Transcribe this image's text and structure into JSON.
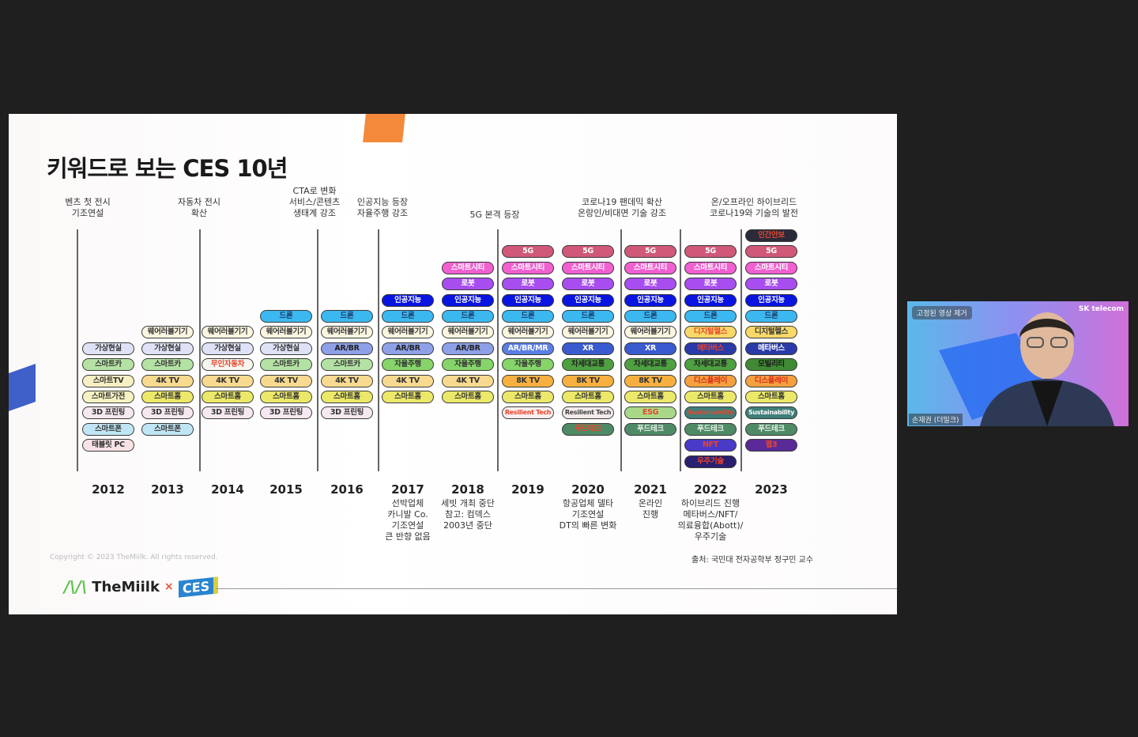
{
  "slide": {
    "title": "키워드로 보는 CES 10년",
    "headers": [
      {
        "text": "벤츠 첫 전시\n기조연설"
      },
      {
        "text": "자동차 전시\n확산"
      },
      {
        "text": "CTA로 변화\n서비스/콘텐츠\n생태계 강조"
      },
      {
        "text": "인공지능 등장\n자율주행 강조"
      },
      {
        "text": "5G 본격 등장"
      },
      {
        "text": "코로나19 팬데믹 확산\n온랑인/비대면 기술 강조"
      },
      {
        "text": "온/오프라인 하이브리드\n코로나19와 기술의 발전"
      }
    ],
    "styles": {
      "vr": {
        "bg": "#dfe2f6",
        "fg": "#333333"
      },
      "smartcar": {
        "bg": "#b4e2a4",
        "fg": "#333333"
      },
      "smarttv": {
        "bg": "#f7f0c4",
        "fg": "#333333"
      },
      "appliance": {
        "bg": "#f5f3c2",
        "fg": "#333333"
      },
      "print3d": {
        "bg": "#f5e8f0",
        "fg": "#333333"
      },
      "phone": {
        "bg": "#c0e6f6",
        "fg": "#333333"
      },
      "tablet": {
        "bg": "#f7e2e6",
        "fg": "#333333"
      },
      "wearable": {
        "bg": "#faf5e0",
        "fg": "#333333"
      },
      "tv4k": {
        "bg": "#f7da90",
        "fg": "#333333"
      },
      "home": {
        "bg": "#ebe86a",
        "fg": "#333333"
      },
      "driverless": {
        "bg": "#f6f5ee",
        "fg": "#e8452c"
      },
      "drone": {
        "bg": "#3cb8f0",
        "fg": "#1a3a6a"
      },
      "arbr": {
        "bg": "#8ea0e8",
        "fg": "#222222"
      },
      "ai": {
        "bg": "#0a14e0",
        "fg": "#ffffff"
      },
      "autonomous": {
        "bg": "#86d46a",
        "fg": "#333333"
      },
      "city": {
        "bg": "#f060d0",
        "fg": "#ffffff"
      },
      "robot": {
        "bg": "#a84ef0",
        "fg": "#ffffff"
      },
      "g5": {
        "bg": "#d05878",
        "fg": "#ffffff"
      },
      "arbrmr": {
        "bg": "#5a7ee6",
        "fg": "#ffffff"
      },
      "tv8k": {
        "bg": "#f7b040",
        "fg": "#333333"
      },
      "resilient_red": {
        "bg": "#f8eeee",
        "fg": "#e8452c"
      },
      "resilient": {
        "bg": "#f3eaea",
        "fg": "#444444"
      },
      "xr": {
        "bg": "#3a5ad0",
        "fg": "#ffffff"
      },
      "nextgen": {
        "bg": "#4ea040",
        "fg": "#222222"
      },
      "food": {
        "bg": "#4e8a66",
        "fg": "#e8f0e8"
      },
      "food_red": {
        "bg": "#4e8a66",
        "fg": "#e8452c"
      },
      "esg": {
        "bg": "#a8d888",
        "fg": "#e8452c"
      },
      "health_red": {
        "bg": "#f7d868",
        "fg": "#e8452c"
      },
      "health": {
        "bg": "#f7d868",
        "fg": "#333333"
      },
      "meta_red": {
        "bg": "#2a3aa8",
        "fg": "#e8452c"
      },
      "meta": {
        "bg": "#2a3aa8",
        "fg": "#ffffff"
      },
      "display": {
        "bg": "#f4a040",
        "fg": "#d8301c"
      },
      "sustain_red": {
        "bg": "#3e7f78",
        "fg": "#e8452c"
      },
      "sustain": {
        "bg": "#3e7f78",
        "fg": "#ffffff"
      },
      "nft": {
        "bg": "#4a3ac8",
        "fg": "#e8452c"
      },
      "space": {
        "bg": "#2a2070",
        "fg": "#e8452c"
      },
      "mobility": {
        "bg": "#3f8a32",
        "fg": "#1a1a1a"
      },
      "web3": {
        "bg": "#5a2a98",
        "fg": "#e8452c"
      },
      "security": {
        "bg": "#2a2a3a",
        "fg": "#e8452c"
      }
    },
    "columns": [
      {
        "year": "2012",
        "note": "",
        "items": [
          {
            "t": "가상현실",
            "s": "vr"
          },
          {
            "t": "스마트카",
            "s": "smartcar"
          },
          {
            "t": "스마트TV",
            "s": "smarttv"
          },
          {
            "t": "스마트가전",
            "s": "appliance"
          },
          {
            "t": "3D 프린팅",
            "s": "print3d"
          },
          {
            "t": "스마트폰",
            "s": "phone"
          },
          {
            "t": "태블릿 PC",
            "s": "tablet"
          }
        ]
      },
      {
        "year": "2013",
        "note": "",
        "items": [
          {
            "t": "웨어러블기기",
            "s": "wearable"
          },
          {
            "t": "가상현실",
            "s": "vr"
          },
          {
            "t": "스마트카",
            "s": "smartcar"
          },
          {
            "t": "4K TV",
            "s": "tv4k"
          },
          {
            "t": "스마트홈",
            "s": "home"
          },
          {
            "t": "3D 프린팅",
            "s": "print3d"
          },
          {
            "t": "스마트폰",
            "s": "phone"
          }
        ]
      },
      {
        "year": "2014",
        "note": "",
        "items": [
          {
            "t": "웨어러블기기",
            "s": "wearable"
          },
          {
            "t": "가상현실",
            "s": "vr"
          },
          {
            "t": "무인자동차",
            "s": "driverless"
          },
          {
            "t": "4K TV",
            "s": "tv4k"
          },
          {
            "t": "스마트홈",
            "s": "home"
          },
          {
            "t": "3D 프린팅",
            "s": "print3d"
          }
        ]
      },
      {
        "year": "2015",
        "note": "",
        "items": [
          {
            "t": "드론",
            "s": "drone"
          },
          {
            "t": "웨어러블기기",
            "s": "wearable"
          },
          {
            "t": "가상현실",
            "s": "vr"
          },
          {
            "t": "스마트카",
            "s": "smartcar"
          },
          {
            "t": "4K TV",
            "s": "tv4k"
          },
          {
            "t": "스마트홈",
            "s": "home"
          },
          {
            "t": "3D 프린팅",
            "s": "print3d"
          }
        ]
      },
      {
        "year": "2016",
        "note": "",
        "items": [
          {
            "t": "드론",
            "s": "drone"
          },
          {
            "t": "웨어러블기기",
            "s": "wearable"
          },
          {
            "t": "AR/BR",
            "s": "arbr"
          },
          {
            "t": "스마트카",
            "s": "smartcar"
          },
          {
            "t": "4K TV",
            "s": "tv4k"
          },
          {
            "t": "스마트홈",
            "s": "home"
          },
          {
            "t": "3D 프린팅",
            "s": "print3d"
          }
        ]
      },
      {
        "year": "2017",
        "note": "선박업체\n카니발 Co.\n기조연설\n큰 반향 없음",
        "items": [
          {
            "t": "인공지능",
            "s": "ai"
          },
          {
            "t": "드론",
            "s": "drone"
          },
          {
            "t": "웨어러블기기",
            "s": "wearable"
          },
          {
            "t": "AR/BR",
            "s": "arbr"
          },
          {
            "t": "자율주행",
            "s": "autonomous"
          },
          {
            "t": "4K TV",
            "s": "tv4k"
          },
          {
            "t": "스마트홈",
            "s": "home"
          }
        ]
      },
      {
        "year": "2018",
        "note": "세빗 개최 중단\n참고: 컴덱스\n2003년 중단",
        "items": [
          {
            "t": "스마트시티",
            "s": "city"
          },
          {
            "t": "로봇",
            "s": "robot"
          },
          {
            "t": "인공지능",
            "s": "ai"
          },
          {
            "t": "드론",
            "s": "drone"
          },
          {
            "t": "웨어러블기기",
            "s": "wearable"
          },
          {
            "t": "AR/BR",
            "s": "arbr"
          },
          {
            "t": "자율주행",
            "s": "autonomous"
          },
          {
            "t": "4K TV",
            "s": "tv4k"
          },
          {
            "t": "스마트홈",
            "s": "home"
          }
        ]
      },
      {
        "year": "2019",
        "note": "",
        "items": [
          {
            "t": "5G",
            "s": "g5"
          },
          {
            "t": "스마트시티",
            "s": "city"
          },
          {
            "t": "로봇",
            "s": "robot"
          },
          {
            "t": "인공지능",
            "s": "ai"
          },
          {
            "t": "드론",
            "s": "drone"
          },
          {
            "t": "웨어러블기기",
            "s": "wearable"
          },
          {
            "t": "AR/BR/MR",
            "s": "arbrmr"
          },
          {
            "t": "자율주행",
            "s": "autonomous"
          },
          {
            "t": "8K TV",
            "s": "tv8k"
          },
          {
            "t": "스마트홈",
            "s": "home"
          },
          {
            "t": "Resilient Tech",
            "s": "resilient_red"
          }
        ]
      },
      {
        "year": "2020",
        "note": "항공업체 델타\n기조연설\nDT의 빠른 변화",
        "items": [
          {
            "t": "5G",
            "s": "g5"
          },
          {
            "t": "스마트시티",
            "s": "city"
          },
          {
            "t": "로봇",
            "s": "robot"
          },
          {
            "t": "인공지능",
            "s": "ai"
          },
          {
            "t": "드론",
            "s": "drone"
          },
          {
            "t": "웨어러블기기",
            "s": "wearable"
          },
          {
            "t": "XR",
            "s": "xr"
          },
          {
            "t": "차세대교통",
            "s": "nextgen"
          },
          {
            "t": "8K TV",
            "s": "tv8k"
          },
          {
            "t": "스마트홈",
            "s": "home"
          },
          {
            "t": "Resilient Tech",
            "s": "resilient"
          },
          {
            "t": "푸드테크",
            "s": "food_red"
          }
        ]
      },
      {
        "year": "2021",
        "note": "온라인\n진행",
        "items": [
          {
            "t": "5G",
            "s": "g5"
          },
          {
            "t": "스마트시티",
            "s": "city"
          },
          {
            "t": "로봇",
            "s": "robot"
          },
          {
            "t": "인공지능",
            "s": "ai"
          },
          {
            "t": "드론",
            "s": "drone"
          },
          {
            "t": "웨어러블기기",
            "s": "wearable"
          },
          {
            "t": "XR",
            "s": "xr"
          },
          {
            "t": "차세대교통",
            "s": "nextgen"
          },
          {
            "t": "8K TV",
            "s": "tv8k"
          },
          {
            "t": "스마트홈",
            "s": "home"
          },
          {
            "t": "ESG",
            "s": "esg"
          },
          {
            "t": "푸드테크",
            "s": "food"
          }
        ]
      },
      {
        "year": "2022",
        "note": "하이브리드 진행\n메타버스/NFT/\n의료융합(Abott)/\n우주기술",
        "items": [
          {
            "t": "5G",
            "s": "g5"
          },
          {
            "t": "스마트시티",
            "s": "city"
          },
          {
            "t": "로봇",
            "s": "robot"
          },
          {
            "t": "인공지능",
            "s": "ai"
          },
          {
            "t": "드론",
            "s": "drone"
          },
          {
            "t": "디지털헬스",
            "s": "health_red"
          },
          {
            "t": "메타버스",
            "s": "meta_red"
          },
          {
            "t": "차세대교통",
            "s": "nextgen"
          },
          {
            "t": "디스플레이",
            "s": "display"
          },
          {
            "t": "스마트홈",
            "s": "home"
          },
          {
            "t": "Sustainability",
            "s": "sustain_red"
          },
          {
            "t": "푸드테크",
            "s": "food"
          },
          {
            "t": "NFT",
            "s": "nft"
          },
          {
            "t": "우주기술",
            "s": "space"
          }
        ]
      },
      {
        "year": "2023",
        "note": "",
        "items": [
          {
            "t": "인간안보",
            "s": "security"
          },
          {
            "t": "5G",
            "s": "g5"
          },
          {
            "t": "스마트시티",
            "s": "city"
          },
          {
            "t": "로봇",
            "s": "robot"
          },
          {
            "t": "인공지능",
            "s": "ai"
          },
          {
            "t": "드론",
            "s": "drone"
          },
          {
            "t": "디지털헬스",
            "s": "health"
          },
          {
            "t": "메타버스",
            "s": "meta"
          },
          {
            "t": "모빌리티",
            "s": "mobility"
          },
          {
            "t": "디스플레이",
            "s": "display"
          },
          {
            "t": "스마트홈",
            "s": "home"
          },
          {
            "t": "Sustainability",
            "s": "sustain"
          },
          {
            "t": "푸드테크",
            "s": "food"
          },
          {
            "t": "웹3",
            "s": "web3"
          }
        ]
      }
    ],
    "copyright": "Copyright © 2023 TheMiilk. All rights reserved.",
    "source": "출처: 국민대 전자공학부 정구민 교수",
    "logo": {
      "brand": "TheMiilk",
      "times": "×",
      "partner": "CES"
    }
  },
  "video": {
    "pin_label": "고정된 영상 제거",
    "brand": "SK telecom",
    "participant_name": "손재권 (더밀크)"
  }
}
